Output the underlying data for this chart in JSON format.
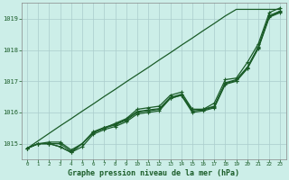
{
  "title": "Graphe pression niveau de la mer (hPa)",
  "ylim": [
    1014.5,
    1019.5
  ],
  "yticks": [
    1015,
    1016,
    1017,
    1018,
    1019
  ],
  "xticks": [
    0,
    1,
    2,
    3,
    4,
    5,
    6,
    7,
    8,
    9,
    10,
    11,
    12,
    13,
    14,
    15,
    16,
    17,
    18,
    19,
    20,
    21,
    22,
    23
  ],
  "background_color": "#cceee8",
  "grid_color": "#aacccc",
  "line_color": "#1a5c28",
  "line_straight": [
    1014.85,
    1015.09,
    1015.33,
    1015.57,
    1015.8,
    1016.04,
    1016.27,
    1016.51,
    1016.74,
    1016.98,
    1017.21,
    1017.44,
    1017.68,
    1017.91,
    1018.15,
    1018.38,
    1018.62,
    1018.85,
    1019.09,
    1019.3,
    1019.3,
    1019.3,
    1019.3,
    1019.3
  ],
  "line_main1": [
    1014.85,
    1015.0,
    1015.0,
    1015.0,
    1014.75,
    1015.0,
    1015.35,
    1015.5,
    1015.6,
    1015.75,
    1016.0,
    1016.05,
    1016.1,
    1016.45,
    1016.55,
    1016.1,
    1016.1,
    1016.2,
    1016.95,
    1017.05,
    1017.45,
    1018.1,
    1019.1,
    1019.25
  ],
  "line_main2": [
    1014.85,
    1015.0,
    1015.0,
    1014.9,
    1014.72,
    1014.9,
    1015.3,
    1015.45,
    1015.55,
    1015.7,
    1015.95,
    1016.0,
    1016.05,
    1016.45,
    1016.55,
    1016.0,
    1016.05,
    1016.15,
    1016.9,
    1017.0,
    1017.4,
    1018.05,
    1019.05,
    1019.2
  ],
  "line_main3": [
    1014.85,
    1015.0,
    1015.05,
    1015.05,
    1014.8,
    1015.0,
    1015.38,
    1015.52,
    1015.62,
    1015.78,
    1016.03,
    1016.08,
    1016.12,
    1016.48,
    1016.58,
    1016.05,
    1016.08,
    1016.18,
    1016.93,
    1017.02,
    1017.42,
    1018.08,
    1019.08,
    1019.22
  ],
  "line_diverge": [
    1014.85,
    1015.0,
    1015.0,
    1014.9,
    1014.72,
    1015.0,
    1015.35,
    1015.5,
    1015.65,
    1015.8,
    1016.1,
    1016.15,
    1016.2,
    1016.55,
    1016.65,
    1016.1,
    1016.1,
    1016.3,
    1017.05,
    1017.1,
    1017.6,
    1018.2,
    1019.2,
    1019.35
  ]
}
